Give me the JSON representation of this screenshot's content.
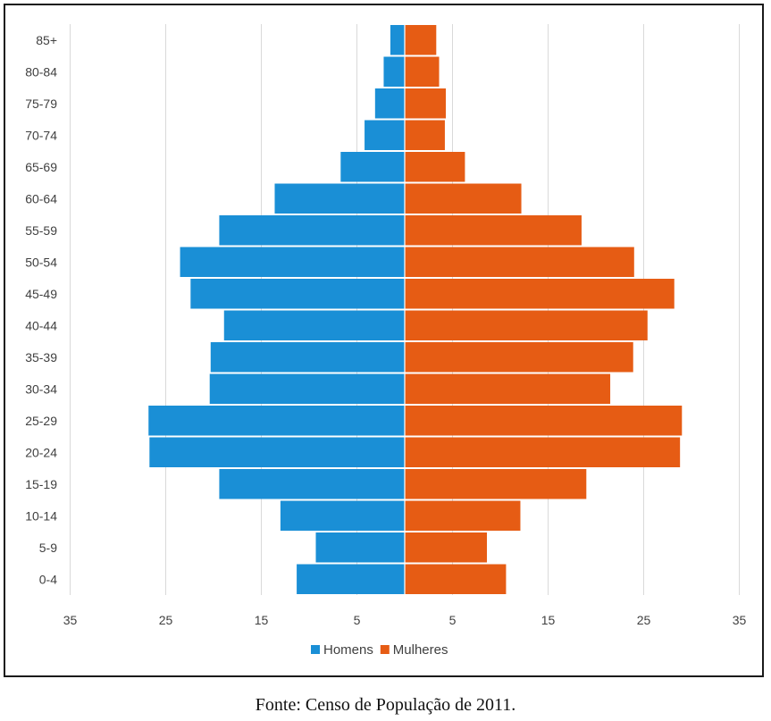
{
  "chart_data": {
    "type": "bar",
    "orientation": "horizontal",
    "subtype": "population-pyramid",
    "categories": [
      "0-4",
      "5-9",
      "10-14",
      "15-19",
      "20-24",
      "25-29",
      "30-34",
      "35-39",
      "40-44",
      "45-49",
      "50-54",
      "55-59",
      "60-64",
      "65-69",
      "70-74",
      "75-79",
      "80-84",
      "85+"
    ],
    "series": [
      {
        "name": "Homens",
        "color": "#1a8fd6",
        "side": "left",
        "values": [
          11.3,
          9.3,
          13,
          19.4,
          26.7,
          26.8,
          20.4,
          20.3,
          18.9,
          22.4,
          23.5,
          19.4,
          13.6,
          6.7,
          4.2,
          3.1,
          2.2,
          1.5
        ]
      },
      {
        "name": "Mulheres",
        "color": "#e65c14",
        "side": "right",
        "values": [
          10.6,
          8.6,
          12.1,
          19,
          28.8,
          29,
          21.5,
          23.9,
          25.4,
          28.2,
          24,
          18.5,
          12.2,
          6.3,
          4.2,
          4.3,
          3.6,
          3.3
        ]
      }
    ],
    "xlim": [
      -35,
      35
    ],
    "x_tick_values": [
      -35,
      -25,
      -15,
      -5,
      5,
      15,
      25,
      35
    ],
    "x_tick_labels": [
      "35",
      "25",
      "15",
      "5",
      "5",
      "15",
      "25",
      "35"
    ],
    "title": "",
    "xlabel": "",
    "ylabel": "",
    "grid": "vertical",
    "legend": "bottom-center"
  },
  "caption": "Fonte: Censo de População de 2011."
}
